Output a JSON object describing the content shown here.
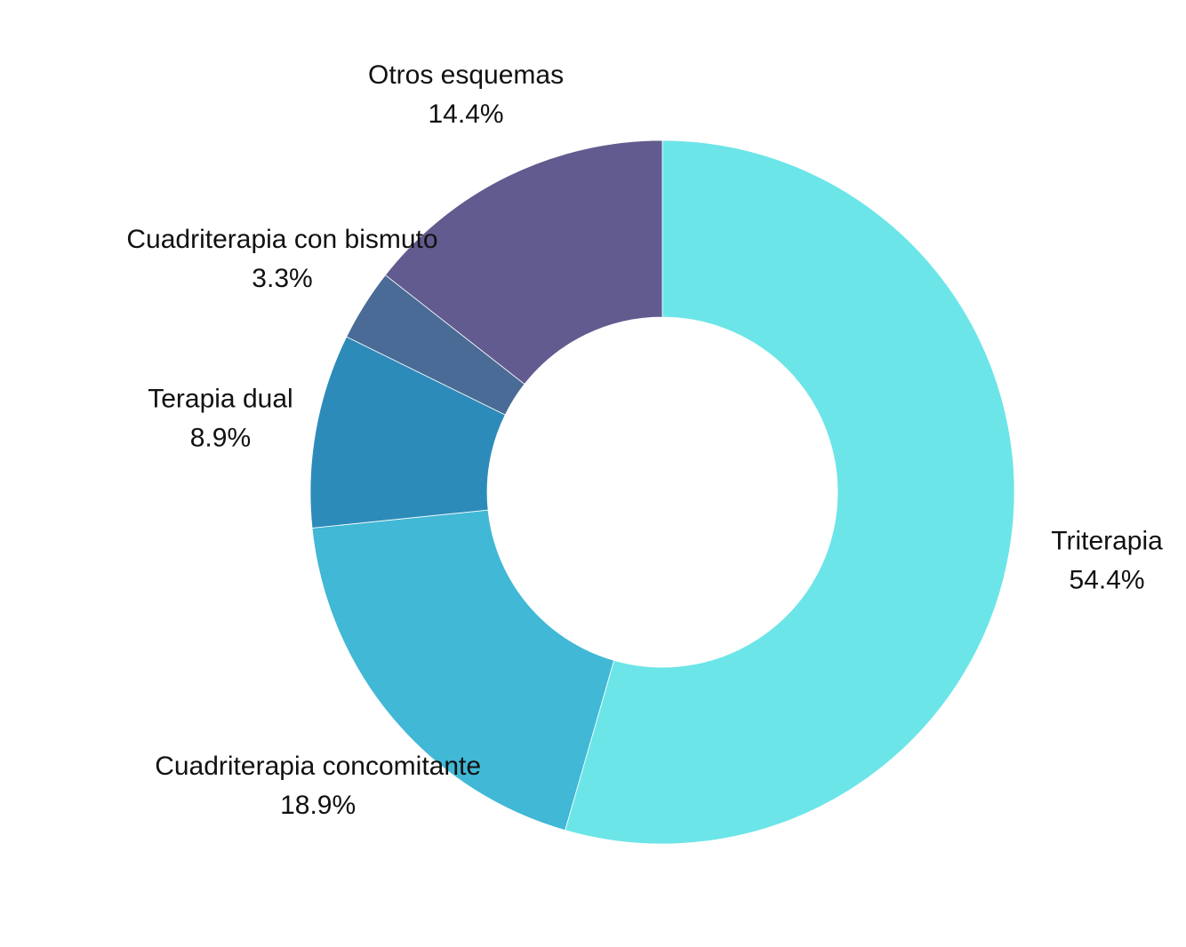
{
  "chart_data": {
    "type": "pie",
    "variant": "donut",
    "title": "",
    "categories": [
      "Triterapia",
      "Cuadriterapia concomitante",
      "Terapia dual",
      "Cuadriterapia con bismuto",
      "Otros esquemas"
    ],
    "values": [
      54.4,
      18.9,
      8.9,
      3.3,
      14.4
    ],
    "value_labels": [
      "54.4%",
      "18.9%",
      "8.9%",
      "3.3%",
      "14.4%"
    ],
    "colors": [
      "#6ce5e8",
      "#41b8d5",
      "#2d8bba",
      "#4a6b96",
      "#625b8f"
    ],
    "direction": "clockwise",
    "start_angle": "top",
    "legend": "none"
  }
}
